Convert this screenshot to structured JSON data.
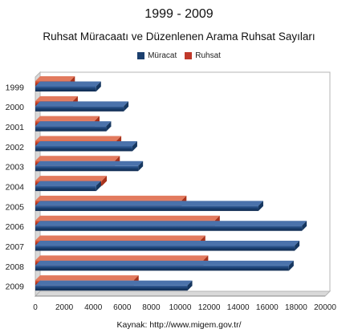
{
  "chart_data": {
    "type": "bar",
    "orientation": "horizontal",
    "title": "1999 - 2009",
    "subtitle": "Ruhsat Müracaatı ve Düzenlenen Arama Ruhsat Sayıları",
    "categories": [
      "1999",
      "2000",
      "2001",
      "2002",
      "2003",
      "2004",
      "2005",
      "2006",
      "2007",
      "2008",
      "2009"
    ],
    "series": [
      {
        "name": "Müracat",
        "color": "#1b3f6e",
        "values": [
          4200,
          6100,
          4900,
          6700,
          7100,
          4200,
          15400,
          18400,
          17900,
          17500,
          10500
        ]
      },
      {
        "name": "Ruhsat",
        "color": "#c0392b",
        "values": [
          2400,
          2600,
          4100,
          5600,
          5500,
          4600,
          10100,
          12400,
          11400,
          11600,
          6800
        ]
      }
    ],
    "xlim": [
      0,
      20000
    ],
    "x_ticks": [
      "0",
      "2000",
      "4000",
      "6000",
      "8000",
      "10000",
      "12000",
      "14000",
      "16000",
      "18000",
      "20000"
    ],
    "legend_position": "top",
    "grid": false,
    "source": "Kaynak: http://www.migem.gov.tr/"
  }
}
